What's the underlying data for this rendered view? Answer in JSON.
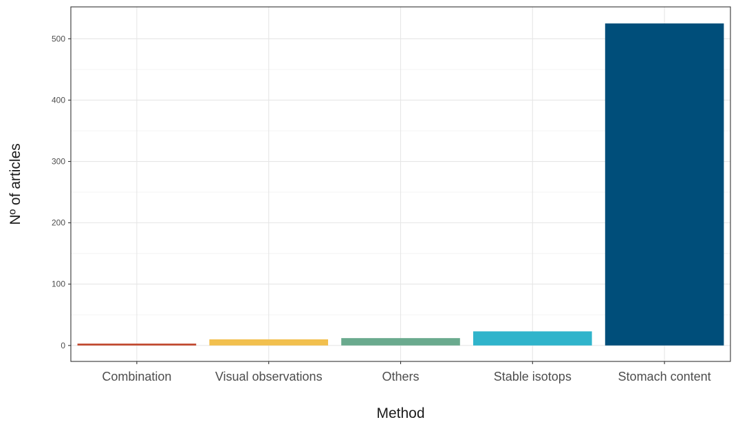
{
  "chart_data": {
    "type": "bar",
    "categories": [
      "Combination",
      "Visual observations",
      "Others",
      "Stable isotops",
      "Stomach content"
    ],
    "values": [
      3,
      10,
      12,
      23,
      525
    ],
    "colors": [
      "#c0442a",
      "#f2c04e",
      "#6aaa8e",
      "#30b4cb",
      "#004e7a"
    ],
    "xlabel": "Method",
    "ylabel": "Nº of articles",
    "ylim": [
      -26,
      552
    ],
    "yticks": [
      0,
      100,
      200,
      300,
      400,
      500
    ],
    "yminor": [
      50,
      150,
      250,
      350,
      450
    ],
    "grid": true,
    "legend": "none"
  }
}
